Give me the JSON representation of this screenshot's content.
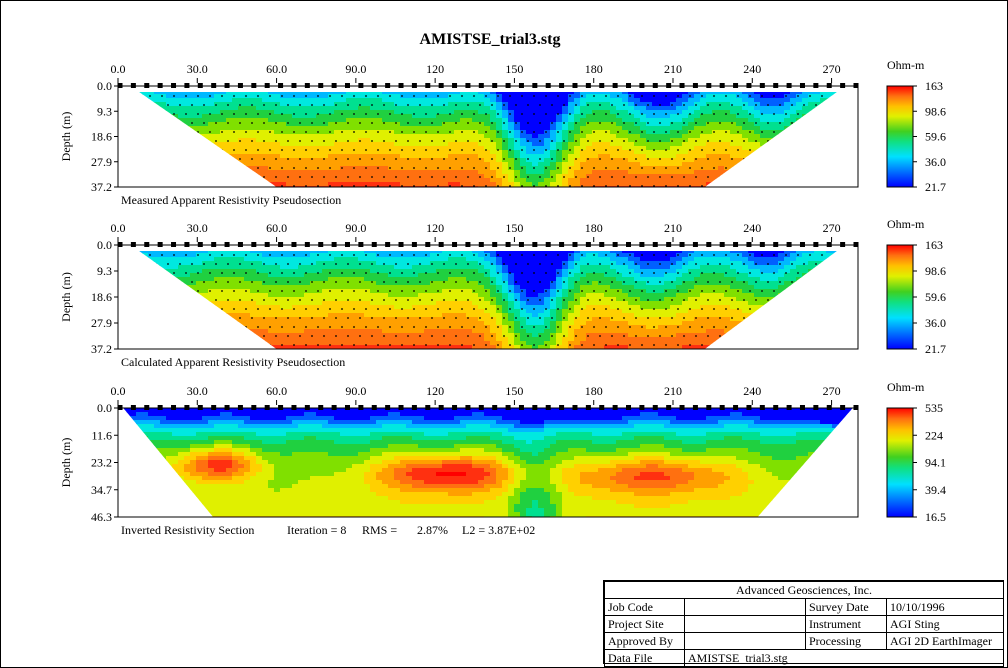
{
  "title": "AMISTSE_trial3.stg",
  "unit_label": "Ohm-m",
  "ylabel": "Depth (m)",
  "x_ticks": [
    "0.0",
    "30.0",
    "60.0",
    "90.0",
    "120",
    "150",
    "180",
    "210",
    "240",
    "270"
  ],
  "panels": [
    {
      "caption": "Measured Apparent Resistivity Pseudosection",
      "y_ticks": [
        "0.0",
        "9.3",
        "18.6",
        "27.9",
        "37.2"
      ],
      "legend_ticks": [
        "163",
        "98.6",
        "59.6",
        "36.0",
        "21.7"
      ]
    },
    {
      "caption": "Calculated Apparent Resistivity Pseudosection",
      "y_ticks": [
        "0.0",
        "9.3",
        "18.6",
        "27.9",
        "37.2"
      ],
      "legend_ticks": [
        "163",
        "98.6",
        "59.6",
        "36.0",
        "21.7"
      ]
    },
    {
      "caption": "Inverted Resistivity Section",
      "iteration_text": "Iteration = 8",
      "rms_label": "RMS =",
      "rms_value": "2.87%",
      "l2_text": "L2 =  3.87E+02",
      "y_ticks": [
        "0.0",
        "11.6",
        "23.2",
        "34.7",
        "46.3"
      ],
      "legend_ticks": [
        "535",
        "224",
        "94.1",
        "39.4",
        "16.5"
      ]
    }
  ],
  "info": {
    "company": "Advanced Geosciences, Inc.",
    "rows": [
      {
        "label1": "Job Code",
        "value1": "",
        "label2": "Survey Date",
        "value2": "10/10/1996"
      },
      {
        "label1": "Project Site",
        "value1": "",
        "label2": "Instrument",
        "value2": "AGI Sting"
      },
      {
        "label1": "Approved By",
        "value1": "",
        "label2": "Processing",
        "value2": "AGI 2D EarthImager"
      }
    ],
    "data_file_label": "Data File",
    "data_file_value": "AMISTSE_trial3.stg"
  },
  "chart_data": {
    "type": "heatmap",
    "x_axis": {
      "ticks": [
        0,
        30,
        60,
        90,
        120,
        150,
        180,
        210,
        240,
        270
      ],
      "range": [
        0,
        280
      ]
    },
    "electrode_count": 56,
    "panels": [
      {
        "name": "Measured Apparent Resistivity Pseudosection",
        "y_range": [
          0,
          37.2
        ],
        "color_range": [
          21.7,
          163
        ],
        "log_scale": true
      },
      {
        "name": "Calculated Apparent Resistivity Pseudosection",
        "y_range": [
          0,
          37.2
        ],
        "color_range": [
          21.7,
          163
        ],
        "log_scale": true
      },
      {
        "name": "Inverted Resistivity Section",
        "y_range": [
          0,
          46.3
        ],
        "color_range": [
          16.5,
          535
        ],
        "log_scale": true
      }
    ]
  }
}
